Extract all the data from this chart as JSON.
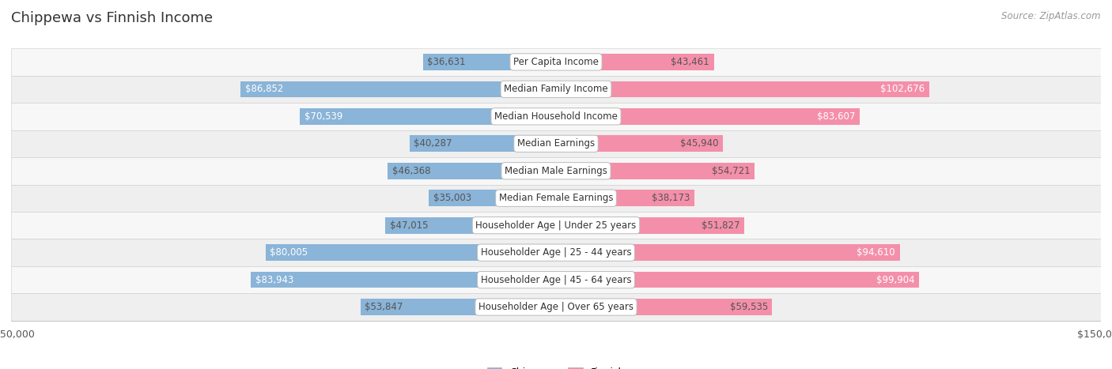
{
  "title": "Chippewa vs Finnish Income",
  "source": "Source: ZipAtlas.com",
  "categories": [
    "Per Capita Income",
    "Median Family Income",
    "Median Household Income",
    "Median Earnings",
    "Median Male Earnings",
    "Median Female Earnings",
    "Householder Age | Under 25 years",
    "Householder Age | 25 - 44 years",
    "Householder Age | 45 - 64 years",
    "Householder Age | Over 65 years"
  ],
  "chippewa_values": [
    36631,
    86852,
    70539,
    40287,
    46368,
    35003,
    47015,
    80005,
    83943,
    53847
  ],
  "finnish_values": [
    43461,
    102676,
    83607,
    45940,
    54721,
    38173,
    51827,
    94610,
    99904,
    59535
  ],
  "max_value": 150000,
  "chippewa_color": "#8ab4d8",
  "finnish_color": "#f48faa",
  "row_bg_even": "#f7f7f7",
  "row_bg_odd": "#efefef",
  "bar_height": 0.6,
  "label_fontsize": 8.5,
  "title_fontsize": 13,
  "axis_label_fontsize": 9,
  "legend_fontsize": 9,
  "large_threshold": 65000,
  "label_color_inside": "white",
  "label_color_outside": "#555555"
}
